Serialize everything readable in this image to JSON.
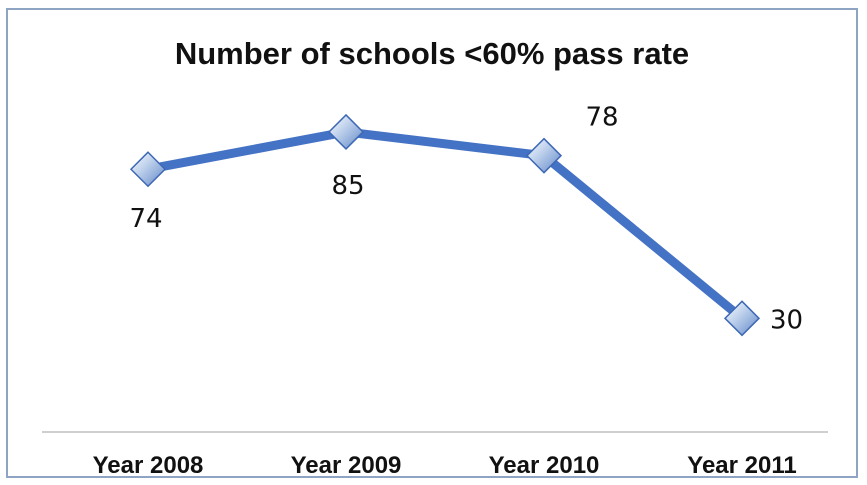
{
  "chart_data": {
    "type": "line",
    "title": "Number of schools <60% pass rate",
    "xlabel": "",
    "ylabel": "",
    "categories": [
      "Year 2008",
      "Year 2009",
      "Year 2010",
      "Year 2011"
    ],
    "series": [
      {
        "values": [
          74,
          85,
          78,
          30
        ],
        "color": "#4472c4",
        "marker": "diamond"
      }
    ],
    "data_labels": [
      "74",
      "85",
      "78",
      "30"
    ],
    "ylim": [
      0,
      90
    ],
    "grid": false,
    "legend": "none"
  }
}
